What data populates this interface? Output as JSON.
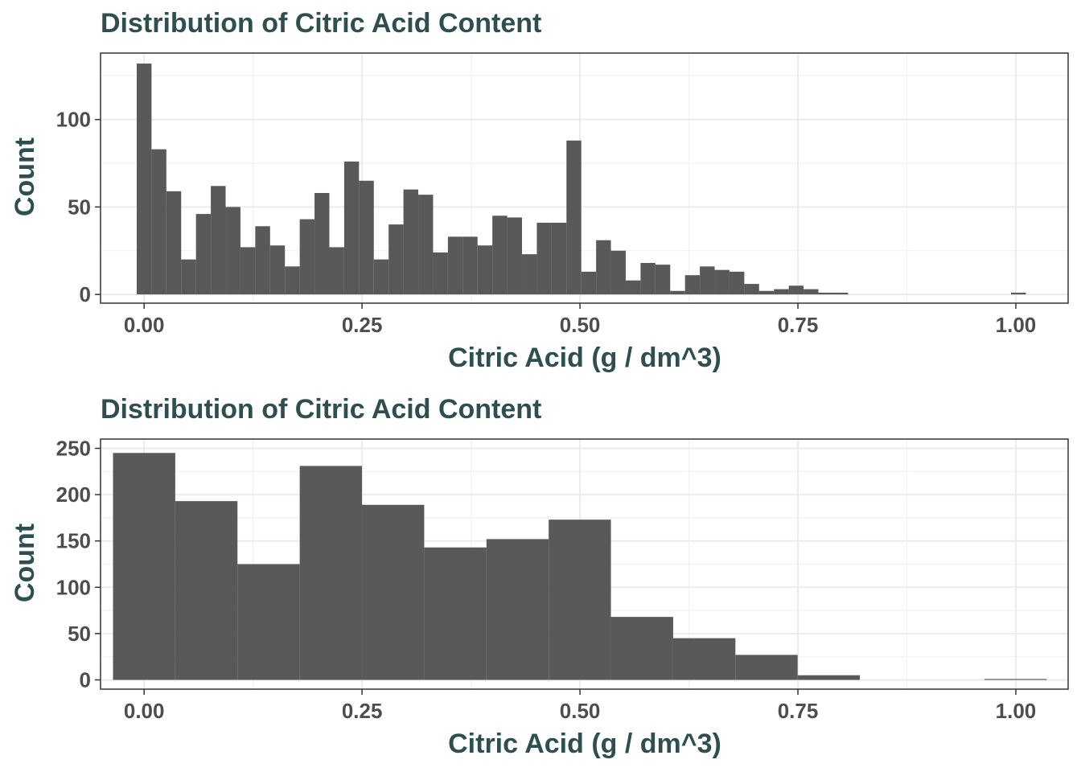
{
  "chart_data": [
    {
      "type": "bar",
      "title": "Distribution of Citric Acid Content",
      "xlabel": "Citric Acid (g / dm^3)",
      "ylabel": "Count",
      "xlim": [
        -0.05,
        1.06
      ],
      "ylim": [
        -5,
        138
      ],
      "x_ticks": [
        0.0,
        0.25,
        0.5,
        0.75,
        1.0
      ],
      "x_tick_labels": [
        "0.00",
        "0.25",
        "0.50",
        "0.75",
        "1.00"
      ],
      "y_ticks": [
        0,
        50,
        100
      ],
      "y_tick_labels": [
        "0",
        "50",
        "100"
      ],
      "grid": true,
      "bin_width": 0.017,
      "bin_start": -0.0085,
      "values": [
        132,
        83,
        59,
        20,
        46,
        62,
        50,
        27,
        39,
        28,
        16,
        43,
        58,
        27,
        76,
        65,
        20,
        40,
        60,
        57,
        24,
        33,
        33,
        28,
        45,
        44,
        23,
        41,
        41,
        88,
        13,
        31,
        25,
        8,
        18,
        17,
        2,
        11,
        16,
        14,
        13,
        6,
        2,
        3,
        5,
        3,
        1,
        1,
        0,
        0,
        0,
        0,
        0,
        0,
        0,
        0,
        0,
        0,
        0,
        1
      ]
    },
    {
      "type": "bar",
      "title": "Distribution of Citric Acid Content",
      "xlabel": "Citric Acid (g / dm^3)",
      "ylabel": "Count",
      "xlim": [
        -0.05,
        1.06
      ],
      "ylim": [
        -10,
        260
      ],
      "x_ticks": [
        0.0,
        0.25,
        0.5,
        0.75,
        1.0
      ],
      "x_tick_labels": [
        "0.00",
        "0.25",
        "0.50",
        "0.75",
        "1.00"
      ],
      "y_ticks": [
        0,
        50,
        100,
        150,
        200,
        250
      ],
      "y_tick_labels": [
        "0",
        "50",
        "100",
        "150",
        "200",
        "250"
      ],
      "grid": true,
      "bin_width": 0.0714,
      "bin_start": -0.0357,
      "values": [
        245,
        193,
        125,
        231,
        189,
        143,
        152,
        173,
        68,
        45,
        27,
        5,
        0,
        0,
        1
      ]
    }
  ]
}
